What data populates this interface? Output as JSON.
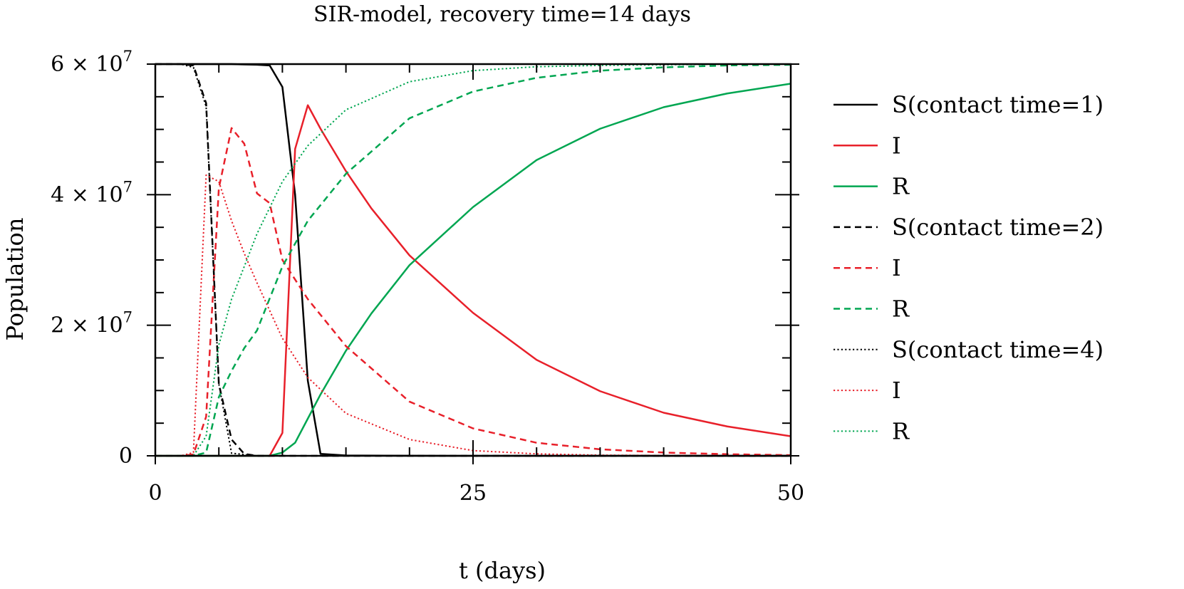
{
  "chart_data": {
    "type": "line",
    "title": "SIR-model, recovery time=14 days",
    "xlabel": "t (days)",
    "ylabel": "Population",
    "xlim": [
      0,
      50
    ],
    "ylim": [
      0,
      60000000
    ],
    "x_ticks": [
      {
        "value": 0,
        "label": "0"
      },
      {
        "value": 25,
        "label": "25"
      },
      {
        "value": 50,
        "label": "50"
      }
    ],
    "y_ticks": [
      {
        "value": 0,
        "label": "0",
        "base": "",
        "exp": ""
      },
      {
        "value": 20000000,
        "label": "",
        "base": "2 × 10",
        "exp": "7"
      },
      {
        "value": 40000000,
        "label": "",
        "base": "4 × 10",
        "exp": "7"
      },
      {
        "value": 60000000,
        "label": "",
        "base": "6 × 10",
        "exp": "7"
      }
    ],
    "grid": false,
    "legend_position": "right",
    "colors": {
      "S": "#000000",
      "I": "#e8202a",
      "R": "#00a651"
    },
    "series": [
      {
        "name": "S(contact time=1)",
        "group": "S",
        "style": "solid",
        "x": [
          0,
          1,
          2,
          3,
          4,
          5,
          6,
          7,
          8,
          9,
          10,
          11,
          12,
          13,
          15,
          20,
          30,
          40,
          50
        ],
        "y": [
          60000000,
          60000000,
          60000000,
          60000000,
          60000000,
          60000000,
          60000000,
          59950000,
          59900000,
          59800000,
          56500000,
          40000000,
          11500000,
          300000,
          50000,
          10000,
          0,
          0,
          0
        ]
      },
      {
        "name": "I",
        "group": "I",
        "style": "solid",
        "x": [
          0,
          8,
          9,
          10,
          11,
          12,
          13,
          15,
          17,
          20,
          25,
          30,
          35,
          40,
          45,
          50
        ],
        "y": [
          0,
          0,
          0,
          3500000,
          47000000,
          53700000,
          50100000,
          43600000,
          37900000,
          30700000,
          21900000,
          14700000,
          9900000,
          6600000,
          4500000,
          3000000
        ]
      },
      {
        "name": "R",
        "group": "R",
        "style": "solid",
        "x": [
          0,
          9,
          10,
          11,
          12,
          13,
          15,
          17,
          20,
          25,
          30,
          35,
          40,
          45,
          50
        ],
        "y": [
          0,
          0,
          500000,
          2000000,
          5700000,
          9400000,
          16100000,
          21800000,
          29200000,
          38100000,
          45300000,
          50100000,
          53400000,
          55500000,
          57000000
        ]
      },
      {
        "name": "S(contact time=2)",
        "group": "S",
        "style": "dashed",
        "x": [
          0,
          1,
          2,
          3,
          4,
          5,
          6,
          7,
          8,
          10,
          20,
          50
        ],
        "y": [
          60000000,
          60000000,
          60000000,
          59800000,
          54000000,
          11000000,
          2500000,
          300000,
          0,
          0,
          0,
          0
        ]
      },
      {
        "name": "I",
        "group": "I",
        "style": "dashed",
        "x": [
          0,
          2,
          3,
          4,
          5,
          6,
          7,
          8,
          9,
          10,
          12,
          15,
          20,
          25,
          30,
          35,
          40,
          45,
          50
        ],
        "y": [
          0,
          0,
          200000,
          6000000,
          41000000,
          50200000,
          47800000,
          40200000,
          38700000,
          30000000,
          24000000,
          16800000,
          8300000,
          4200000,
          2000000,
          1000000,
          500000,
          250000,
          100000
        ]
      },
      {
        "name": "R",
        "group": "R",
        "style": "dashed",
        "x": [
          0,
          3,
          4,
          5,
          6,
          7,
          8,
          10,
          12,
          15,
          20,
          25,
          30,
          35,
          40,
          45,
          50
        ],
        "y": [
          0,
          0,
          500000,
          9000000,
          13000000,
          16500000,
          19200000,
          29000000,
          36000000,
          43200000,
          51700000,
          55800000,
          57900000,
          59000000,
          59500000,
          59800000,
          59900000
        ]
      },
      {
        "name": "S(contact time=4)",
        "group": "S",
        "style": "dotted",
        "x": [
          0,
          1,
          2,
          3,
          4,
          5,
          6,
          8,
          10,
          20,
          50
        ],
        "y": [
          60000000,
          60000000,
          60000000,
          59500000,
          53500000,
          11000000,
          400000,
          0,
          0,
          0,
          0
        ]
      },
      {
        "name": "I",
        "group": "I",
        "style": "dotted",
        "x": [
          0,
          2,
          3,
          4,
          5,
          6,
          7,
          8,
          10,
          12,
          15,
          20,
          25,
          30,
          35,
          40,
          45,
          50
        ],
        "y": [
          0,
          0,
          500000,
          43000000,
          42000000,
          36000000,
          31000000,
          26500000,
          18000000,
          12000000,
          6500000,
          2500000,
          800000,
          300000,
          100000,
          50000,
          20000,
          10000
        ]
      },
      {
        "name": "R",
        "group": "R",
        "style": "dotted",
        "x": [
          0,
          3,
          4,
          5,
          6,
          7,
          8,
          10,
          12,
          15,
          20,
          25,
          30,
          35,
          40,
          45,
          50
        ],
        "y": [
          0,
          0,
          3000000,
          17000000,
          24000000,
          29000000,
          34000000,
          42000000,
          47500000,
          53000000,
          57300000,
          59000000,
          59600000,
          59800000,
          59900000,
          60000000,
          60000000
        ]
      }
    ]
  }
}
